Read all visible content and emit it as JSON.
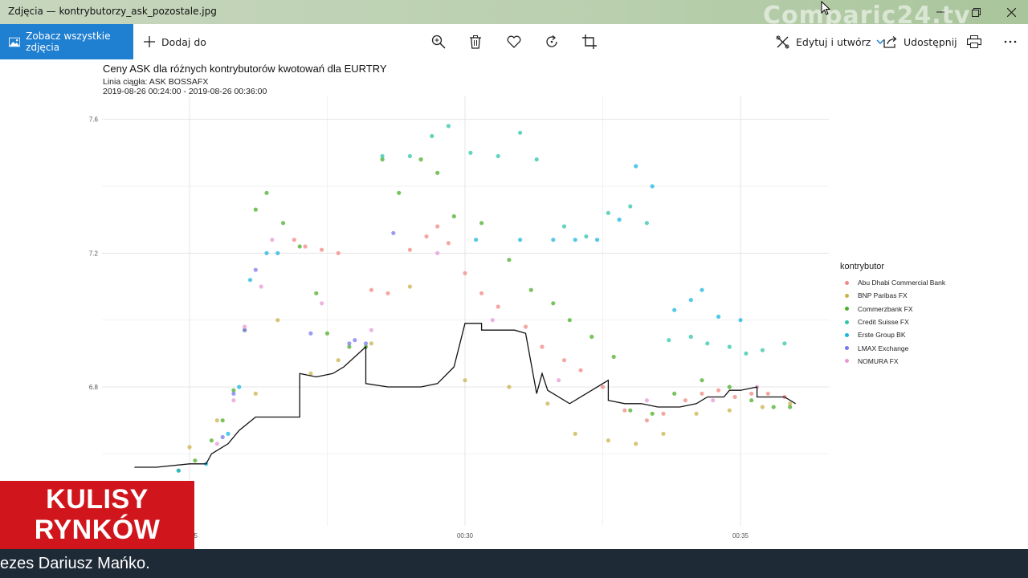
{
  "window": {
    "title": "Zdjęcia — kontrybutorzy_ask_pozostale.jpg",
    "background_text": "Comparic24.tv"
  },
  "toolbar": {
    "see_all": "Zobacz wszystkie zdjęcia",
    "add_to": "Dodaj do",
    "edit_create": "Edytuj i utwórz",
    "share": "Udostępnij",
    "icons": [
      "zoom-in-icon",
      "delete-icon",
      "favorite-icon",
      "rotate-icon",
      "crop-icon",
      "print-icon",
      "more-icon"
    ]
  },
  "chart_data": {
    "type": "scatter",
    "title": "Ceny ASK dla różnych kontrybutorów kwotowań dla EURTRY",
    "subtitle_line1": "Linia ciągła: ASK BOSSAFX",
    "subtitle_line2": "2019-08-26 00:24:00 - 2019-08-26 00:36:00",
    "legend_title": "kontrybutor",
    "y_ticks": [
      "7.6",
      "7.2",
      "6.8"
    ],
    "x_ticks": [
      "00:25",
      "00:30",
      "00:35"
    ],
    "ylim": [
      6.5,
      7.65
    ],
    "grid": true,
    "legend_position": "right",
    "series": [
      {
        "name": "Abu Dhabi Commercial Bank",
        "color": "#f08a83",
        "points": [
          [
            26.9,
            7.24
          ],
          [
            27.1,
            7.22
          ],
          [
            27.4,
            7.21
          ],
          [
            27.7,
            7.2
          ],
          [
            28.3,
            7.09
          ],
          [
            28.6,
            7.08
          ],
          [
            29.0,
            7.21
          ],
          [
            29.3,
            7.25
          ],
          [
            29.5,
            7.28
          ],
          [
            29.7,
            7.23
          ],
          [
            30.0,
            7.14
          ],
          [
            30.3,
            7.08
          ],
          [
            30.6,
            7.04
          ],
          [
            31.1,
            6.98
          ],
          [
            31.4,
            6.92
          ],
          [
            31.8,
            6.88
          ],
          [
            32.1,
            6.85
          ],
          [
            32.5,
            6.8
          ],
          [
            32.9,
            6.73
          ],
          [
            33.3,
            6.7
          ],
          [
            33.6,
            6.72
          ],
          [
            34.0,
            6.76
          ],
          [
            34.3,
            6.78
          ],
          [
            34.6,
            6.79
          ],
          [
            34.9,
            6.77
          ],
          [
            35.2,
            6.78
          ],
          [
            35.5,
            6.78
          ],
          [
            35.8,
            6.77
          ]
        ]
      },
      {
        "name": "BNP Paribas FX",
        "color": "#c9b24b",
        "points": [
          [
            25.0,
            6.62
          ],
          [
            25.5,
            6.7
          ],
          [
            26.2,
            6.78
          ],
          [
            26.6,
            7.0
          ],
          [
            27.2,
            6.84
          ],
          [
            27.7,
            6.88
          ],
          [
            28.3,
            6.93
          ],
          [
            29.0,
            7.1
          ],
          [
            30.0,
            6.82
          ],
          [
            30.8,
            6.8
          ],
          [
            31.5,
            6.75
          ],
          [
            32.0,
            6.66
          ],
          [
            32.6,
            6.64
          ],
          [
            33.1,
            6.63
          ],
          [
            33.6,
            6.66
          ],
          [
            34.2,
            6.72
          ],
          [
            34.8,
            6.73
          ],
          [
            35.4,
            6.74
          ],
          [
            35.9,
            6.75
          ]
        ]
      },
      {
        "name": "Commerzbank FX",
        "color": "#4caf2a",
        "points": [
          [
            24.8,
            6.55
          ],
          [
            25.1,
            6.58
          ],
          [
            25.4,
            6.64
          ],
          [
            25.6,
            6.7
          ],
          [
            25.8,
            6.79
          ],
          [
            26.0,
            6.97
          ],
          [
            26.2,
            7.33
          ],
          [
            26.4,
            7.38
          ],
          [
            26.7,
            7.29
          ],
          [
            27.0,
            7.22
          ],
          [
            27.3,
            7.08
          ],
          [
            27.5,
            6.96
          ],
          [
            27.9,
            6.92
          ],
          [
            28.2,
            6.92
          ],
          [
            28.5,
            7.48
          ],
          [
            28.8,
            7.38
          ],
          [
            29.2,
            7.48
          ],
          [
            29.5,
            7.44
          ],
          [
            29.8,
            7.31
          ],
          [
            30.3,
            7.29
          ],
          [
            30.8,
            7.18
          ],
          [
            31.2,
            7.09
          ],
          [
            31.6,
            7.05
          ],
          [
            31.9,
            7.0
          ],
          [
            32.3,
            6.95
          ],
          [
            32.7,
            6.89
          ],
          [
            33.0,
            6.73
          ],
          [
            33.4,
            6.72
          ],
          [
            33.8,
            6.78
          ],
          [
            34.3,
            6.82
          ],
          [
            34.8,
            6.8
          ],
          [
            35.2,
            6.76
          ],
          [
            35.6,
            6.74
          ],
          [
            35.9,
            6.74
          ]
        ]
      },
      {
        "name": "Credit Suisse FX",
        "color": "#2fc7a8",
        "points": [
          [
            28.5,
            7.49
          ],
          [
            29.0,
            7.49
          ],
          [
            29.4,
            7.55
          ],
          [
            29.7,
            7.58
          ],
          [
            30.1,
            7.5
          ],
          [
            30.6,
            7.49
          ],
          [
            31.0,
            7.56
          ],
          [
            31.3,
            7.48
          ],
          [
            31.8,
            7.28
          ],
          [
            32.2,
            7.25
          ],
          [
            32.6,
            7.32
          ],
          [
            33.0,
            7.34
          ],
          [
            33.3,
            7.29
          ],
          [
            33.7,
            6.94
          ],
          [
            34.1,
            6.95
          ],
          [
            34.4,
            6.93
          ],
          [
            34.8,
            6.92
          ],
          [
            35.1,
            6.9
          ],
          [
            35.4,
            6.91
          ],
          [
            35.8,
            6.93
          ]
        ]
      },
      {
        "name": "Erste Group BK",
        "color": "#19b6e0",
        "points": [
          [
            24.8,
            6.55
          ],
          [
            25.3,
            6.57
          ],
          [
            25.7,
            6.66
          ],
          [
            25.9,
            6.8
          ],
          [
            26.1,
            7.12
          ],
          [
            26.4,
            7.2
          ],
          [
            26.6,
            7.2
          ],
          [
            30.2,
            7.24
          ],
          [
            31.0,
            7.24
          ],
          [
            31.6,
            7.24
          ],
          [
            32.0,
            7.24
          ],
          [
            32.4,
            7.24
          ],
          [
            32.8,
            7.3
          ],
          [
            33.1,
            7.46
          ],
          [
            33.4,
            7.4
          ],
          [
            33.8,
            7.03
          ],
          [
            34.1,
            7.06
          ],
          [
            34.3,
            7.09
          ],
          [
            34.6,
            7.01
          ],
          [
            35.0,
            7.0
          ]
        ]
      },
      {
        "name": "LMAX Exchange",
        "color": "#7b78f0",
        "points": [
          [
            25.6,
            6.65
          ],
          [
            25.8,
            6.78
          ],
          [
            26.0,
            6.97
          ],
          [
            26.2,
            7.15
          ],
          [
            27.2,
            6.96
          ],
          [
            27.9,
            6.93
          ],
          [
            28.0,
            6.94
          ],
          [
            28.2,
            6.93
          ],
          [
            28.7,
            7.26
          ]
        ]
      },
      {
        "name": "NOMURA FX",
        "color": "#e79ad6",
        "points": [
          [
            25.5,
            6.63
          ],
          [
            25.8,
            6.76
          ],
          [
            26.0,
            6.98
          ],
          [
            26.3,
            7.1
          ],
          [
            26.5,
            7.24
          ],
          [
            27.4,
            7.05
          ],
          [
            28.3,
            6.97
          ],
          [
            29.5,
            7.2
          ],
          [
            30.5,
            7.0
          ],
          [
            31.7,
            6.82
          ],
          [
            33.3,
            6.76
          ],
          [
            34.5,
            6.76
          ],
          [
            35.3,
            6.8
          ]
        ]
      }
    ],
    "line": {
      "name": "ASK BOSSAFX",
      "color": "#111111",
      "points": [
        [
          24.0,
          6.56
        ],
        [
          24.4,
          6.56
        ],
        [
          25.0,
          6.57
        ],
        [
          25.3,
          6.57
        ],
        [
          25.4,
          6.6
        ],
        [
          25.7,
          6.63
        ],
        [
          25.9,
          6.67
        ],
        [
          26.2,
          6.71
        ],
        [
          26.6,
          6.71
        ],
        [
          27.0,
          6.71
        ],
        [
          27.0,
          6.84
        ],
        [
          27.3,
          6.83
        ],
        [
          27.6,
          6.84
        ],
        [
          27.8,
          6.86
        ],
        [
          28.0,
          6.89
        ],
        [
          28.2,
          6.92
        ],
        [
          28.2,
          6.81
        ],
        [
          28.6,
          6.8
        ],
        [
          29.2,
          6.8
        ],
        [
          29.5,
          6.81
        ],
        [
          29.8,
          6.86
        ],
        [
          30.0,
          6.99
        ],
        [
          30.3,
          6.99
        ],
        [
          30.3,
          6.97
        ],
        [
          30.9,
          6.97
        ],
        [
          31.1,
          6.96
        ],
        [
          31.3,
          6.78
        ],
        [
          31.4,
          6.84
        ],
        [
          31.5,
          6.79
        ],
        [
          31.9,
          6.75
        ],
        [
          32.3,
          6.79
        ],
        [
          32.6,
          6.82
        ],
        [
          32.6,
          6.76
        ],
        [
          32.9,
          6.75
        ],
        [
          33.2,
          6.75
        ],
        [
          33.5,
          6.74
        ],
        [
          33.9,
          6.74
        ],
        [
          34.2,
          6.75
        ],
        [
          34.4,
          6.77
        ],
        [
          34.7,
          6.77
        ],
        [
          34.8,
          6.79
        ],
        [
          35.0,
          6.79
        ],
        [
          35.3,
          6.8
        ],
        [
          35.3,
          6.77
        ],
        [
          35.7,
          6.77
        ],
        [
          35.8,
          6.77
        ],
        [
          36.0,
          6.75
        ]
      ]
    }
  },
  "overlay": {
    "badge_line1": "KULISY",
    "badge_line2": "RYNKÓW",
    "ticker": "ezes Dariusz Mańko."
  }
}
